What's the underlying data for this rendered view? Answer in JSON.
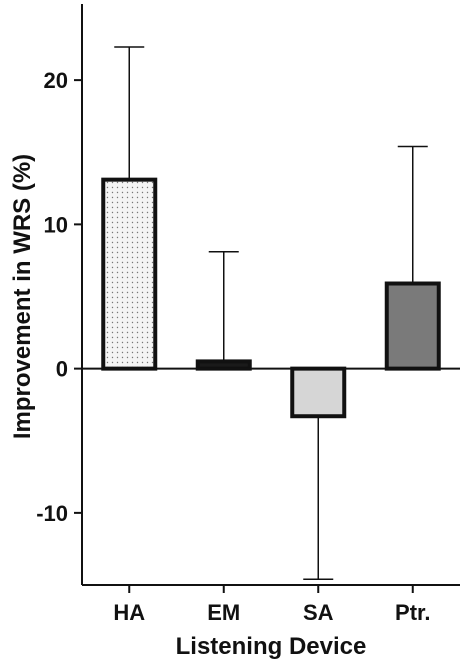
{
  "chart_data": {
    "type": "bar",
    "title": "",
    "xlabel": "Listening Device",
    "ylabel": "Improvement in WRS (%)",
    "categories": [
      "HA",
      "EM",
      "SA",
      "Ptr."
    ],
    "values": [
      13.1,
      0.5,
      -3.3,
      5.9
    ],
    "error_upper": [
      22.3,
      8.1,
      -3.3,
      15.4
    ],
    "error_lower": [
      13.1,
      0.5,
      -14.6,
      5.9
    ],
    "ylim": [
      -15,
      25
    ],
    "yticks": [
      -10,
      0,
      10,
      20
    ],
    "ytick_labels": [
      "-10",
      "0",
      "10",
      "20"
    ],
    "grid": false,
    "legend": "none",
    "bar_fills": [
      "dotted-light",
      "#1a1a1a",
      "#d6d6d6",
      "#7a7a7a"
    ]
  }
}
